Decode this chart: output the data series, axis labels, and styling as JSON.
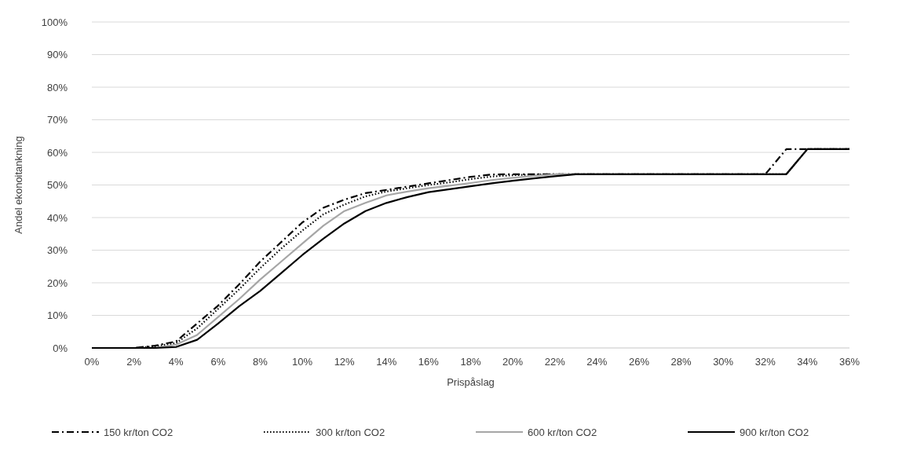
{
  "chart_data": {
    "type": "line",
    "xlabel": "Prispåslag",
    "ylabel": "Andel ekonoitankning",
    "x": [
      0,
      1,
      2,
      3,
      4,
      5,
      6,
      7,
      8,
      9,
      10,
      11,
      12,
      13,
      14,
      15,
      16,
      17,
      18,
      19,
      20,
      21,
      22,
      23,
      24,
      25,
      26,
      27,
      28,
      29,
      30,
      31,
      32,
      33,
      34,
      35,
      36
    ],
    "xlim": [
      0,
      36
    ],
    "xticks": [
      {
        "value": 0,
        "label": "0%"
      },
      {
        "value": 2,
        "label": "2%"
      },
      {
        "value": 4,
        "label": "4%"
      },
      {
        "value": 6,
        "label": "6%"
      },
      {
        "value": 8,
        "label": "8%"
      },
      {
        "value": 10,
        "label": "10%"
      },
      {
        "value": 12,
        "label": "12%"
      },
      {
        "value": 14,
        "label": "14%"
      },
      {
        "value": 16,
        "label": "16%"
      },
      {
        "value": 18,
        "label": "18%"
      },
      {
        "value": 20,
        "label": "20%"
      },
      {
        "value": 22,
        "label": "22%"
      },
      {
        "value": 24,
        "label": "24%"
      },
      {
        "value": 26,
        "label": "26%"
      },
      {
        "value": 28,
        "label": "28%"
      },
      {
        "value": 30,
        "label": "30%"
      },
      {
        "value": 32,
        "label": "32%"
      },
      {
        "value": 34,
        "label": "34%"
      },
      {
        "value": 36,
        "label": "36%"
      }
    ],
    "ylim": [
      0,
      100
    ],
    "yticks": [
      {
        "value": 0,
        "label": "0%"
      },
      {
        "value": 10,
        "label": "10%"
      },
      {
        "value": 20,
        "label": "20%"
      },
      {
        "value": 30,
        "label": "30%"
      },
      {
        "value": 40,
        "label": "40%"
      },
      {
        "value": 50,
        "label": "50%"
      },
      {
        "value": 60,
        "label": "60%"
      },
      {
        "value": 70,
        "label": "70%"
      },
      {
        "value": 80,
        "label": "80%"
      },
      {
        "value": 90,
        "label": "90%"
      },
      {
        "value": 100,
        "label": "100%"
      }
    ],
    "grid": "y",
    "legend": "bottom",
    "marker": "none",
    "series": [
      {
        "name": "150 kr/ton CO2",
        "color": "#000000",
        "line_style": "dashdot",
        "values": [
          0,
          0,
          0,
          0.7,
          2,
          7.5,
          13,
          19.5,
          26.5,
          32.5,
          38.5,
          43,
          45.5,
          47.5,
          48.5,
          49.5,
          50.5,
          51.5,
          52.5,
          53.2,
          53.3,
          53.3,
          53.3,
          53.3,
          53.3,
          53.3,
          53.3,
          53.3,
          53.3,
          53.3,
          53.3,
          53.3,
          53.3,
          61,
          61,
          61,
          61
        ]
      },
      {
        "name": "300 kr/ton CO2",
        "color": "#000000",
        "line_style": "dotted",
        "values": [
          0,
          0,
          0,
          0.5,
          1.5,
          6,
          12,
          18,
          24.5,
          30.5,
          36,
          41,
          44,
          46.5,
          48,
          49,
          50,
          50.8,
          51.8,
          52.6,
          53,
          53.2,
          53.3,
          53.3,
          53.3,
          53.3,
          53.3,
          53.3,
          53.3,
          53.3,
          53.3,
          53.3,
          53.3,
          53.3,
          61,
          61,
          61
        ]
      },
      {
        "name": "600 kr/ton CO2",
        "color": "#a6a6a6",
        "line_style": "solid",
        "values": [
          0,
          0,
          0,
          0,
          1,
          4,
          9.5,
          15,
          21,
          26.5,
          32,
          37.5,
          42,
          44.5,
          46.8,
          48,
          49,
          49.8,
          50.6,
          51.5,
          52.2,
          52.8,
          53.2,
          53.3,
          53.3,
          53.3,
          53.3,
          53.3,
          53.3,
          53.3,
          53.3,
          53.3,
          53.3,
          53.3,
          61,
          61,
          61
        ]
      },
      {
        "name": "900 kr/ton CO2",
        "color": "#000000",
        "line_style": "solid",
        "values": [
          0,
          0,
          0,
          0,
          0.3,
          2.5,
          7.5,
          12.8,
          17.5,
          23,
          28.5,
          33.5,
          38.2,
          42,
          44.5,
          46.3,
          47.8,
          48.7,
          49.6,
          50.5,
          51.3,
          52,
          52.7,
          53.3,
          53.3,
          53.3,
          53.3,
          53.3,
          53.3,
          53.3,
          53.3,
          53.3,
          53.3,
          53.3,
          61,
          61,
          61
        ]
      }
    ]
  }
}
